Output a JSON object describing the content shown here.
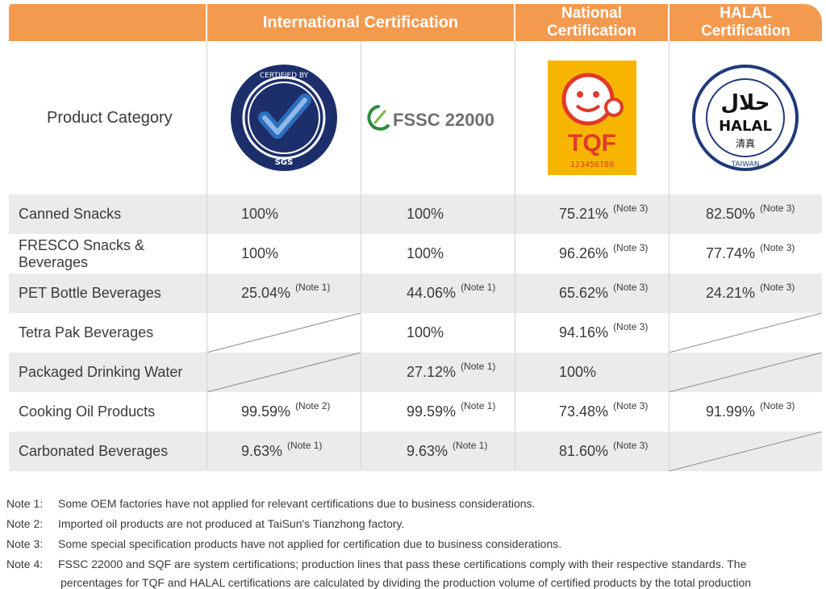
{
  "header": {
    "international": "International Certification",
    "national_line1": "National",
    "national_line2": "Certification",
    "halal_line1": "HALAL",
    "halal_line2": "Certification"
  },
  "first_column_label": "Product Category",
  "logos": {
    "sgs": {
      "outer_text": "CERTIFIED BY",
      "sub_text": "SGS"
    },
    "fssc": {
      "text": "FSSC 22000"
    },
    "tqf": {
      "text": "TQF",
      "number": "123456789"
    },
    "halal": {
      "arabic": "حلال",
      "text": "HALAL",
      "chinese": "清真",
      "ring_text": "TAIWAN"
    }
  },
  "rows": [
    {
      "category": "Canned Snacks",
      "sgs": {
        "value": "100%",
        "note": ""
      },
      "fssc": {
        "value": "100%",
        "note": ""
      },
      "tqf": {
        "value": "75.21%",
        "note": "(Note 3)"
      },
      "halal": {
        "value": "82.50%",
        "note": "(Note 3)"
      }
    },
    {
      "category": "FRESCO Snacks & Beverages",
      "sgs": {
        "value": "100%",
        "note": ""
      },
      "fssc": {
        "value": "100%",
        "note": ""
      },
      "tqf": {
        "value": "96.26%",
        "note": "(Note 3)"
      },
      "halal": {
        "value": "77.74%",
        "note": "(Note 3)"
      }
    },
    {
      "category": "PET Bottle Beverages",
      "sgs": {
        "value": "25.04%",
        "note": "(Note 1)"
      },
      "fssc": {
        "value": "44.06%",
        "note": "(Note 1)"
      },
      "tqf": {
        "value": "65.62%",
        "note": "(Note 3)"
      },
      "halal": {
        "value": "24.21%",
        "note": "(Note 3)"
      }
    },
    {
      "category": "Tetra Pak Beverages",
      "sgs": {
        "value": "",
        "note": ""
      },
      "fssc": {
        "value": "100%",
        "note": ""
      },
      "tqf": {
        "value": "94.16%",
        "note": "(Note 3)"
      },
      "halal": {
        "value": "",
        "note": ""
      }
    },
    {
      "category": "Packaged Drinking Water",
      "sgs": {
        "value": "",
        "note": ""
      },
      "fssc": {
        "value": "27.12%",
        "note": "(Note 1)"
      },
      "tqf": {
        "value": "100%",
        "note": ""
      },
      "halal": {
        "value": "",
        "note": ""
      }
    },
    {
      "category": "Cooking Oil Products",
      "sgs": {
        "value": "99.59%",
        "note": "(Note 2)"
      },
      "fssc": {
        "value": "99.59%",
        "note": "(Note 1)"
      },
      "tqf": {
        "value": "73.48%",
        "note": "(Note 3)"
      },
      "halal": {
        "value": "91.99%",
        "note": "(Note 3)"
      }
    },
    {
      "category": "Carbonated Beverages",
      "sgs": {
        "value": "9.63%",
        "note": "(Note 1)"
      },
      "fssc": {
        "value": "9.63%",
        "note": "(Note 1)"
      },
      "tqf": {
        "value": "81.60%",
        "note": "(Note 3)"
      },
      "halal": {
        "value": "",
        "note": ""
      }
    }
  ],
  "notes": [
    {
      "label": "Note 1:",
      "text": "Some OEM factories have not applied for relevant certifications due to business considerations."
    },
    {
      "label": "Note 2:",
      "text": "Imported oil products are not produced at TaiSun's Tianzhong factory."
    },
    {
      "label": "Note 3:",
      "text": "Some special specification products have not applied for certification due to business considerations."
    },
    {
      "label": "Note 4:",
      "text": "FSSC 22000 and SQF are system certifications; production lines that pass these certifications comply with their respective standards. The"
    }
  ],
  "note4_continuation": "percentages for TQF and HALAL certifications are calculated by dividing the production volume of certified products by the total production",
  "colors": {
    "header_orange": "#f39a4f",
    "row_shade": "#ebebeb",
    "sgs_navy": "#1d2f6b",
    "sgs_check": "#2c6fbe",
    "fssc_green": "#2e8b3c",
    "tqf_yellow": "#f7b500",
    "tqf_red": "#e03a2a",
    "halal_navy": "#1f3a7a"
  }
}
